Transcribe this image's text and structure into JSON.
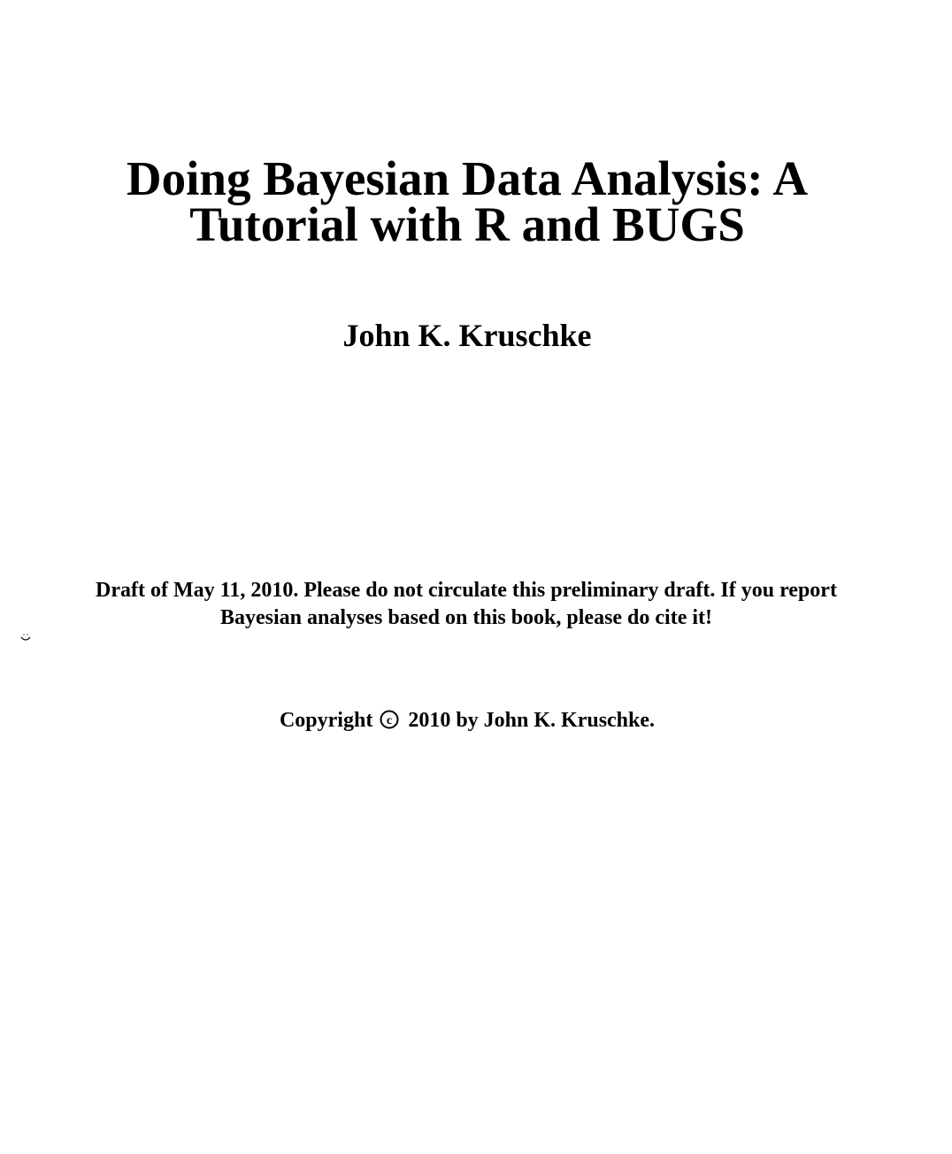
{
  "title": {
    "line1": "Doing Bayesian Data Analysis: A",
    "line2": "Tutorial with R and BUGS"
  },
  "author": "John K. Kruschke",
  "draft_note": {
    "line1": "Draft of May 11, 2010. Please do not circulate this preliminary draft. If you report",
    "line2": "Bayesian analyses based on this book, please do cite it!",
    "icon": "smiley-icon"
  },
  "copyright": {
    "prefix": "Copyright",
    "symbol": "©",
    "suffix": "2010 by John K. Kruschke."
  }
}
